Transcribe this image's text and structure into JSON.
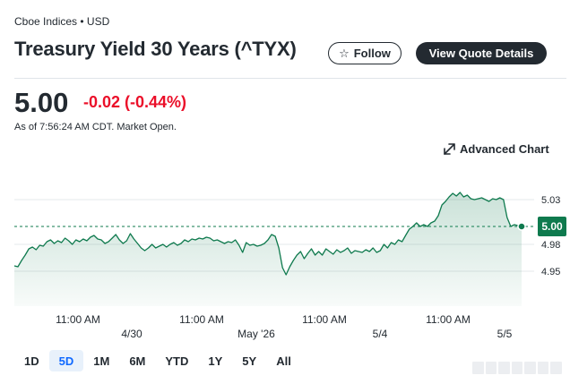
{
  "header": {
    "exchange": "Cboe Indices • USD",
    "title": "Treasury Yield 30 Years (^TYX)",
    "follow_label": "Follow",
    "quote_label": "View Quote Details"
  },
  "quote": {
    "price": "5.00",
    "change": "-0.02 (-0.44%)",
    "as_of": "As of 7:56:24 AM CDT. Market Open."
  },
  "chart_controls": {
    "advanced_chart_label": "Advanced Chart",
    "ranges": [
      "1D",
      "5D",
      "1M",
      "6M",
      "YTD",
      "1Y",
      "5Y",
      "All"
    ],
    "active_range": "5D"
  },
  "colors": {
    "accent": "#0f69ff",
    "negative": "#eb0f29",
    "line": "#0f7a4e",
    "badge": "#0f7a4e"
  },
  "chart_data": {
    "type": "area",
    "y_ticks": [
      4.95,
      4.98,
      5.03
    ],
    "current_value_label": "5.00",
    "previous_close": 5.0,
    "x_time_labels": [
      "11:00 AM",
      "11:00 AM",
      "11:00 AM",
      "11:00 AM"
    ],
    "x_date_labels": [
      "4/30",
      "May '26",
      "5/4",
      "5/5"
    ],
    "series": [
      {
        "values": [
          4.956,
          4.955,
          4.962,
          4.968,
          4.975,
          4.977,
          4.974,
          4.979,
          4.978,
          4.983,
          4.985,
          4.981,
          4.984,
          4.982,
          4.987,
          4.984,
          4.98,
          4.985,
          4.983,
          4.986,
          4.984,
          4.988,
          4.99,
          4.986,
          4.985,
          4.981,
          4.983,
          4.987,
          4.991,
          4.985,
          4.981,
          4.984,
          4.992,
          4.986,
          4.981,
          4.976,
          4.973,
          4.976,
          4.98,
          4.976,
          4.978,
          4.98,
          4.977,
          4.98,
          4.982,
          4.979,
          4.981,
          4.985,
          4.983,
          4.986,
          4.985,
          4.987,
          4.986,
          4.988,
          4.987,
          4.984,
          4.985,
          4.983,
          4.981,
          4.983,
          4.982,
          4.985,
          4.979,
          4.971,
          4.982,
          4.979,
          4.98,
          4.978,
          4.979,
          4.981,
          4.985,
          4.991,
          4.989,
          4.976,
          4.954,
          4.946,
          4.955,
          4.962,
          4.968,
          4.972,
          4.964,
          4.97,
          4.975,
          4.968,
          4.972,
          4.968,
          4.975,
          4.972,
          4.969,
          4.974,
          4.971,
          4.973,
          4.976,
          4.97,
          4.973,
          4.972,
          4.971,
          4.974,
          4.972,
          4.976,
          4.971,
          4.973,
          4.98,
          4.976,
          4.982,
          4.98,
          4.985,
          4.983,
          4.99,
          4.997,
          5.0,
          5.004,
          5.0,
          5.002,
          5.0,
          5.004,
          5.006,
          5.012,
          5.024,
          5.028,
          5.033,
          5.037,
          5.034,
          5.038,
          5.033,
          5.035,
          5.031,
          5.03,
          5.031,
          5.032,
          5.03,
          5.028,
          5.031,
          5.03,
          5.032,
          5.03,
          5.01,
          5.0,
          5.002,
          5.001,
          5.0
        ]
      }
    ]
  }
}
